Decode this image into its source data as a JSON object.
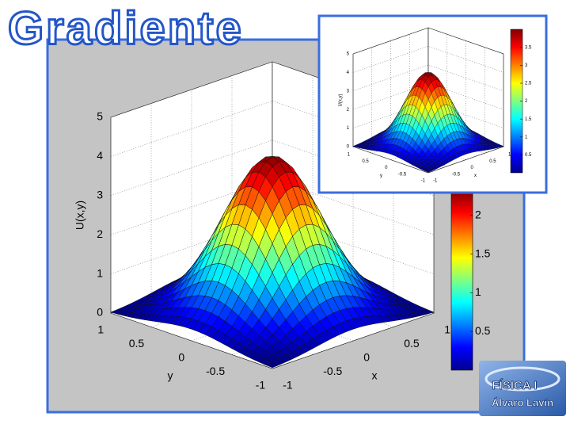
{
  "title": "Gradiente",
  "main_plot": {
    "zlabel": "U(x,y)",
    "xlabel": "x",
    "ylabel": "y",
    "zticks": [
      "0",
      "1",
      "2",
      "3",
      "4",
      "5"
    ],
    "yticks": [
      "1",
      "0.5",
      "0",
      "-0.5",
      "-1"
    ],
    "xticks": [
      "-1",
      "-0.5",
      "0",
      "0.5",
      "1"
    ],
    "colorbar_ticks": [
      "0.5",
      "1",
      "1.5",
      "2"
    ]
  },
  "inset_plot": {
    "zlabel": "U(x,y)",
    "xlabel": "x",
    "ylabel": "y",
    "zticks": [
      "0",
      "1",
      "2",
      "3",
      "4",
      "5"
    ],
    "yticks": [
      "1",
      "0.5",
      "0",
      "-0.5",
      "-1"
    ],
    "xticks": [
      "-1",
      "-0.5",
      "0",
      "0.5",
      "1"
    ],
    "colorbar_ticks": [
      "0.5",
      "1",
      "1.5",
      "2",
      "2.5",
      "3",
      "3.5"
    ]
  },
  "logo": {
    "line1": "FÍSICA I",
    "line2": "Álvaro Lavín"
  }
}
